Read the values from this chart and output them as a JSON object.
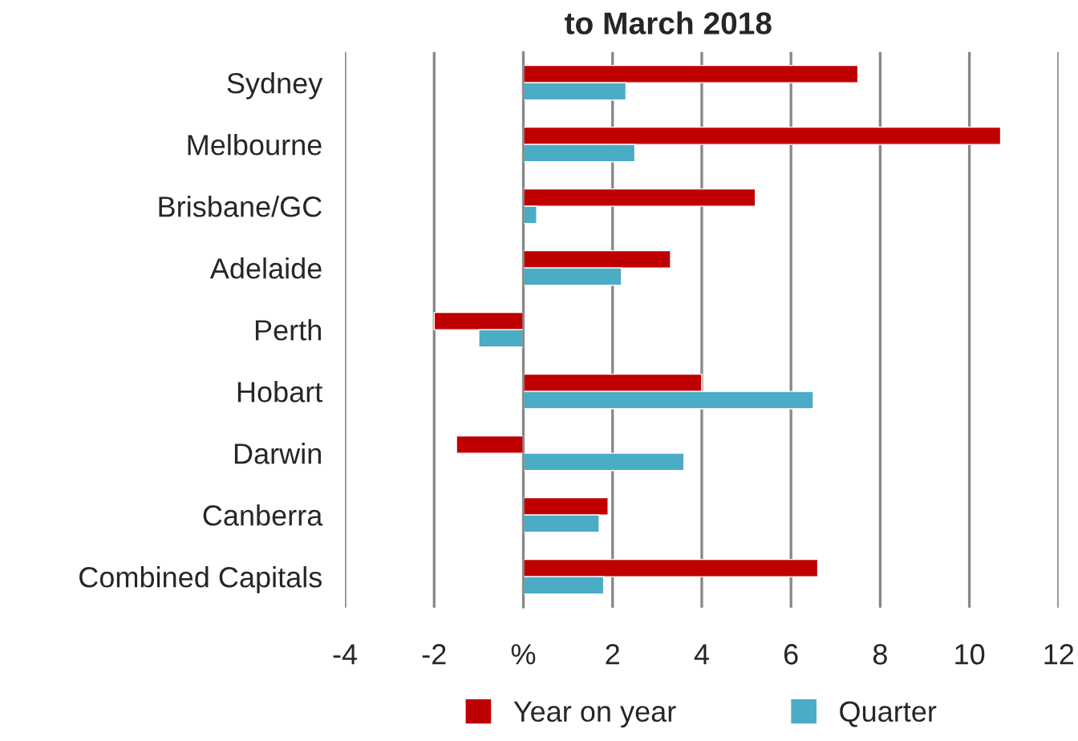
{
  "chart_data": {
    "type": "bar",
    "orientation": "horizontal",
    "title": "to March 2018",
    "categories": [
      "Sydney",
      "Melbourne",
      "Brisbane/GC",
      "Adelaide",
      "Perth",
      "Hobart",
      "Darwin",
      "Canberra",
      "Combined Capitals"
    ],
    "series": [
      {
        "name": "Year on year",
        "color": "#c00000",
        "values": [
          7.5,
          10.7,
          5.2,
          3.3,
          -2.0,
          4.0,
          -1.5,
          1.9,
          6.6
        ]
      },
      {
        "name": "Quarter",
        "color": "#4bacc6",
        "values": [
          2.3,
          2.5,
          0.3,
          2.2,
          -1.0,
          6.5,
          3.6,
          1.7,
          1.8
        ]
      }
    ],
    "xlim": [
      -4,
      12
    ],
    "xticks": [
      -4,
      -2,
      {
        "value": 0,
        "label": "%"
      },
      2,
      4,
      6,
      8,
      10,
      12
    ],
    "grid": "x",
    "legend": "bottom"
  }
}
